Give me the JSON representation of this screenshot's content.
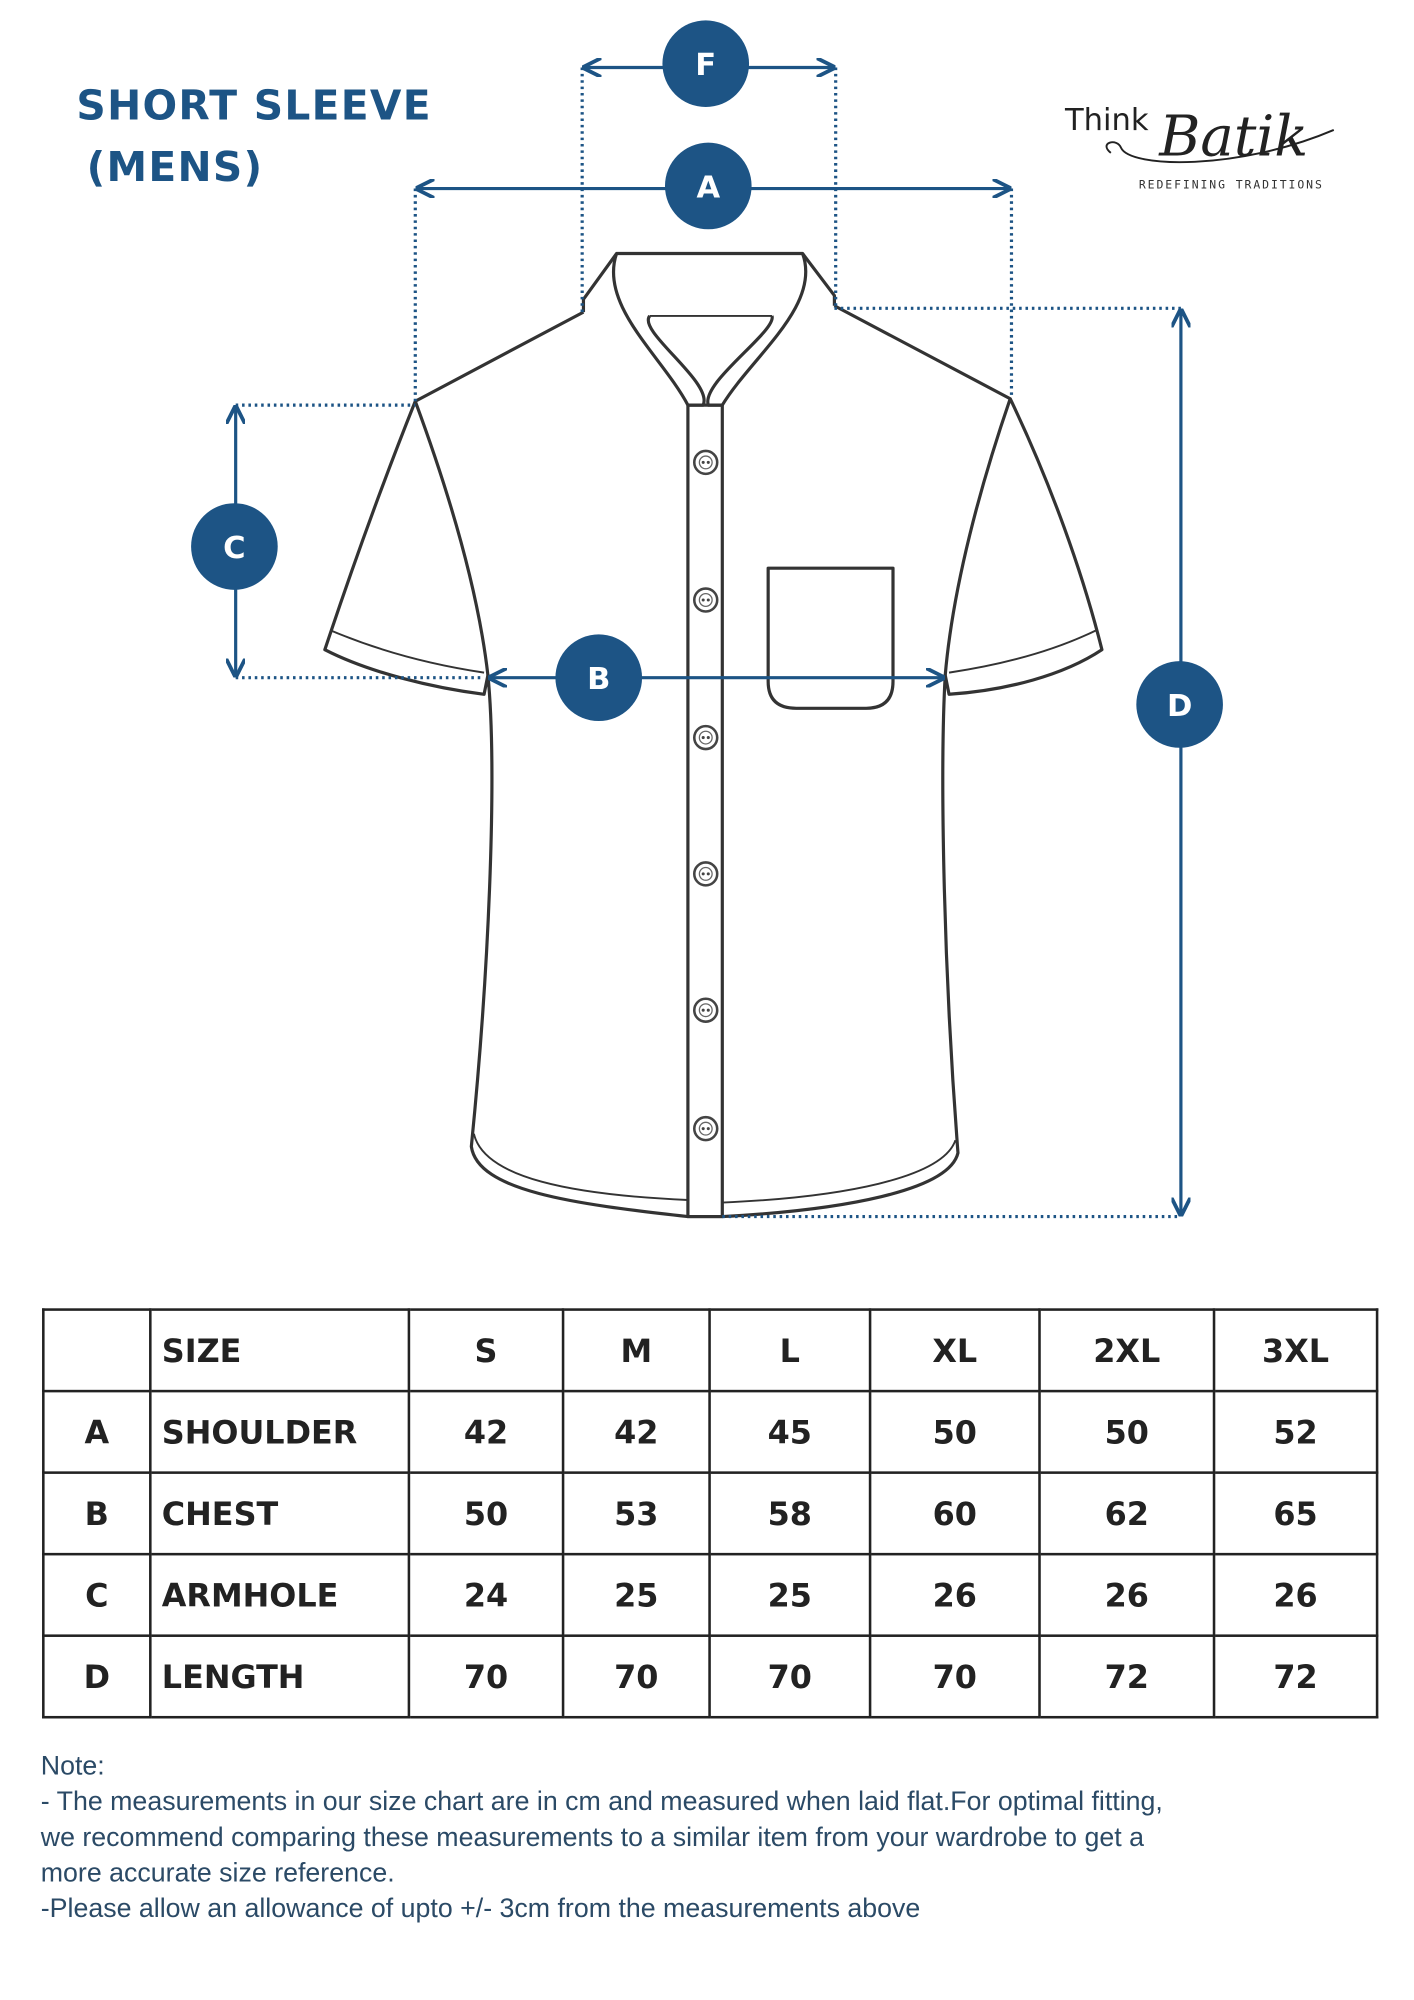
{
  "title": {
    "line1": "SHORT SLEEVE",
    "line2": "(MENS)"
  },
  "logo": {
    "brand_part1": "Think",
    "brand_part2": "Batik",
    "tagline": "REDEFINING TRADITIONS"
  },
  "colors": {
    "accent": "#1d5485",
    "outline": "#333333"
  },
  "diagram": {
    "labels": {
      "F": "F",
      "A": "A",
      "C": "C",
      "B": "B",
      "D": "D"
    }
  },
  "table": {
    "header": [
      "",
      "SIZE",
      "S",
      "M",
      "L",
      "XL",
      "2XL",
      "3XL"
    ],
    "rows": [
      {
        "code": "A",
        "name": "SHOULDER",
        "values": [
          "42",
          "42",
          "45",
          "50",
          "50",
          "52"
        ]
      },
      {
        "code": "B",
        "name": "CHEST",
        "values": [
          "50",
          "53",
          "58",
          "60",
          "62",
          "65"
        ]
      },
      {
        "code": "C",
        "name": "ARMHOLE",
        "values": [
          "24",
          "25",
          "25",
          "26",
          "26",
          "26"
        ]
      },
      {
        "code": "D",
        "name": "LENGTH",
        "values": [
          "70",
          "70",
          "70",
          "70",
          "72",
          "72"
        ]
      }
    ]
  },
  "note": {
    "heading": "Note:",
    "lines": [
      "- The measurements in our size chart are in cm and measured when laid flat.For optimal fitting,",
      "we recommend comparing these measurements to a similar item from your wardrobe to get a",
      "more accurate size reference.",
      "-Please allow an allowance of upto +/- 3cm from the measurements above"
    ]
  }
}
